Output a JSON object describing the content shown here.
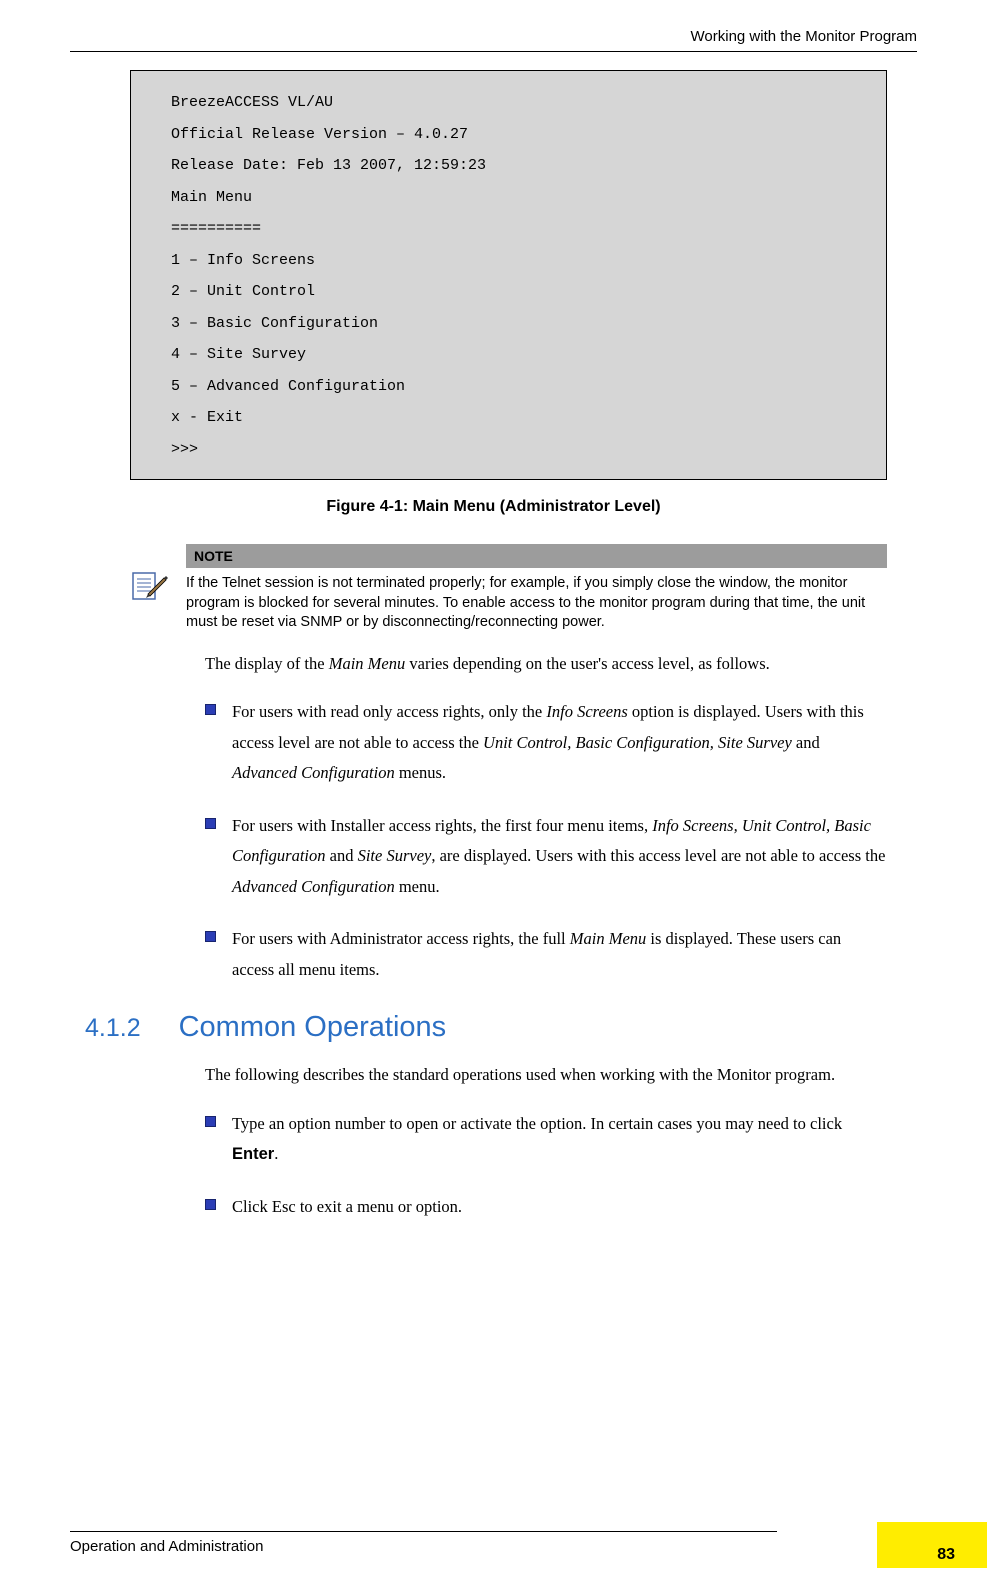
{
  "header": {
    "title": "Working with the Monitor Program"
  },
  "terminal": {
    "lines": [
      "BreezeACCESS VL/AU",
      "Official Release Version – 4.0.27",
      "Release Date: Feb 13 2007, 12:59:23",
      "Main Menu",
      "==========",
      "1 –  Info Screens",
      "2 – Unit Control",
      "3 –  Basic Configuration",
      "4 – Site Survey",
      "5 – Advanced Configuration",
      "x - Exit",
      ">>>"
    ]
  },
  "figure_caption": "Figure 4-1: Main Menu (Administrator Level)",
  "note": {
    "label": "NOTE",
    "text": "If the Telnet session is not terminated properly; for example, if you simply close the window, the monitor program is blocked for several minutes. To enable access to the monitor program during that time, the unit must be reset via SNMP or by disconnecting/reconnecting power."
  },
  "intro": {
    "pre": "The display of the ",
    "italic": "Main Menu",
    "post": " varies depending on the user's access level, as follows."
  },
  "bullets1": [
    {
      "segments": [
        {
          "t": "For users with read only access rights, only the "
        },
        {
          "t": "Info Screens",
          "i": true
        },
        {
          "t": " option is displayed. Users with this access level are not able to access the "
        },
        {
          "t": "Unit Control, Basic Configuration, Site Survey",
          "i": true
        },
        {
          "t": " and "
        },
        {
          "t": "Advanced Configuration",
          "i": true
        },
        {
          "t": " menus."
        }
      ]
    },
    {
      "segments": [
        {
          "t": "For users with Installer access rights, the first four menu items, "
        },
        {
          "t": "Info Screens, Unit Control, Basic Configuration",
          "i": true
        },
        {
          "t": " and "
        },
        {
          "t": "Site Survey",
          "i": true
        },
        {
          "t": ", are displayed. Users with this access level are not able to access the "
        },
        {
          "t": "Advanced Configuration",
          "i": true
        },
        {
          "t": " menu."
        }
      ]
    },
    {
      "segments": [
        {
          "t": "For users with Administrator access rights, the full "
        },
        {
          "t": "Main Menu",
          "i": true
        },
        {
          "t": " is displayed. These users can access all menu items."
        }
      ]
    }
  ],
  "section": {
    "num": "4.1.2",
    "title": "Common Operations"
  },
  "section_intro": "The following describes the standard operations used when working with the Monitor program.",
  "bullets2": [
    {
      "segments": [
        {
          "t": "Type an option number to open or activate the option. In certain cases you may need to click "
        },
        {
          "t": "Enter",
          "b": true
        },
        {
          "t": "."
        }
      ]
    },
    {
      "segments": [
        {
          "t": "Click Esc to exit a menu or option."
        }
      ]
    }
  ],
  "footer": {
    "left": "Operation and Administration",
    "page": "83"
  },
  "colors": {
    "bullet_fill": "#2b3db5",
    "bullet_border": "#18246e",
    "heading": "#2b6fc4",
    "terminal_bg": "#d6d6d6",
    "note_header_bg": "#9c9c9c",
    "tab": "#ffed00"
  }
}
